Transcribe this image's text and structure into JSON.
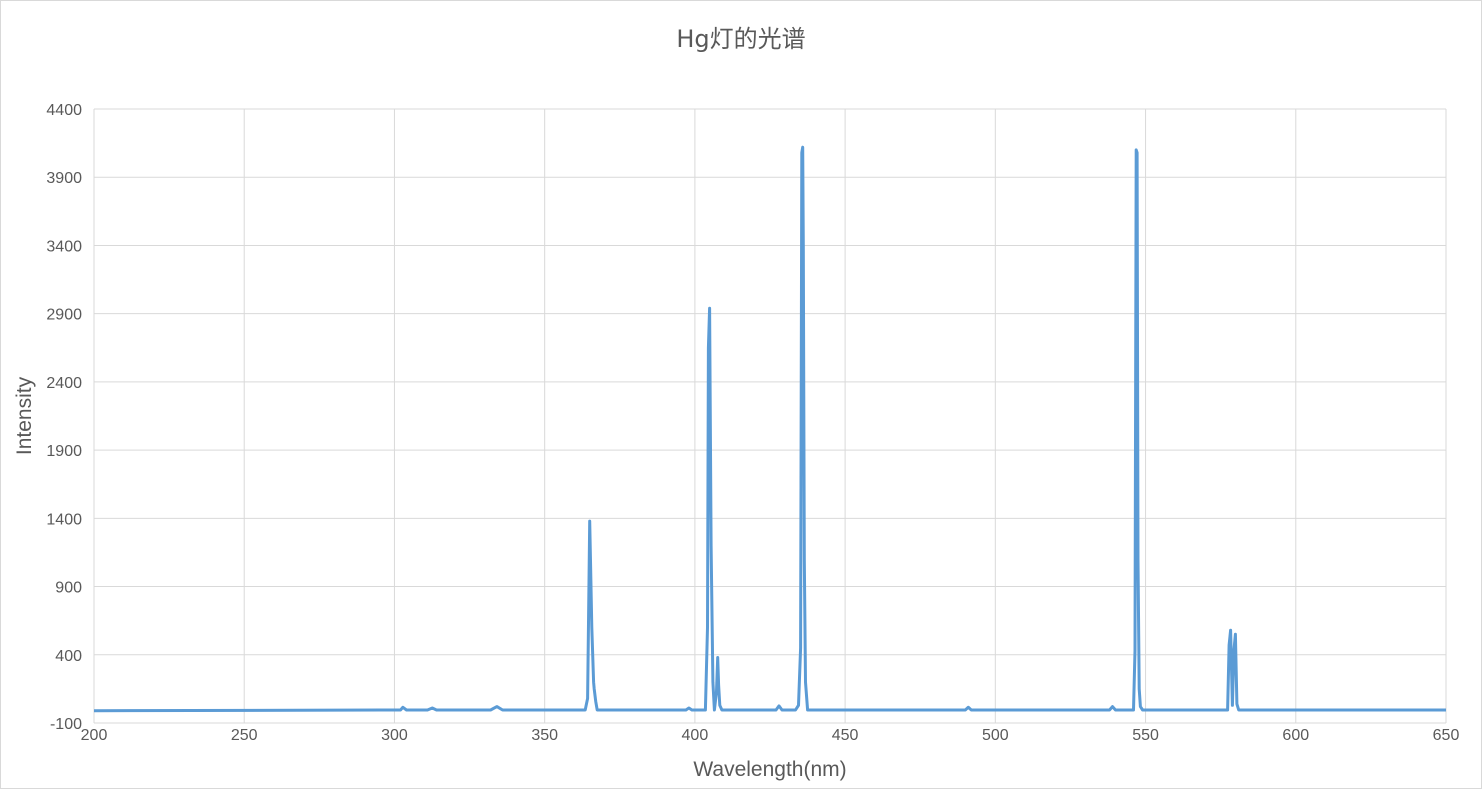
{
  "chart_data": {
    "type": "line",
    "title": "Hg灯的光谱",
    "xlabel": "Wavelength(nm)",
    "ylabel": "Intensity",
    "xlim": [
      200,
      650
    ],
    "ylim": [
      -100,
      4400
    ],
    "x_ticks": [
      "200",
      "250",
      "300",
      "350",
      "400",
      "450",
      "500",
      "550",
      "600",
      "650"
    ],
    "y_ticks": [
      "-100",
      "400",
      "900",
      "1400",
      "1900",
      "2400",
      "2900",
      "3400",
      "3900",
      "4400"
    ],
    "grid": true,
    "legend": "none",
    "series_color": "#5b9bd5",
    "series": [
      {
        "x": [
          200,
          300,
          302,
          302.8,
          304,
          311,
          312.6,
          314,
          332,
          334.1,
          336,
          363.5,
          364.3,
          364.8,
          365.0,
          365.3,
          365.7,
          366.3,
          366.5,
          367.0,
          367.5,
          397,
          398,
          399,
          403.5,
          404.2,
          404.5,
          404.9,
          405.4,
          406.0,
          406.5,
          407.2,
          407.6,
          407.9,
          408.3,
          409.0,
          427,
          428,
          429,
          433.5,
          434.5,
          435.2,
          435.6,
          435.9,
          436.1,
          436.4,
          436.8,
          437.5,
          490,
          491,
          492,
          538,
          539,
          540,
          546,
          546.5,
          546.9,
          547.2,
          547.5,
          547.9,
          548.3,
          549,
          577.3,
          577.8,
          578.3,
          578.9,
          579.4,
          579.9,
          580.4,
          581.0,
          650
        ],
        "y": [
          -10,
          -5,
          -5,
          15,
          -5,
          -5,
          10,
          -5,
          -5,
          20,
          -5,
          -5,
          80,
          1000,
          1380,
          1050,
          600,
          200,
          150,
          60,
          -5,
          -5,
          10,
          -5,
          -5,
          600,
          2650,
          2940,
          1200,
          200,
          -5,
          130,
          380,
          180,
          30,
          -5,
          -5,
          25,
          -5,
          -5,
          30,
          450,
          4080,
          4120,
          3400,
          1100,
          200,
          -5,
          -5,
          15,
          -5,
          -5,
          20,
          -5,
          -5,
          430,
          4100,
          4080,
          1100,
          150,
          20,
          -5,
          -5,
          470,
          580,
          30,
          430,
          550,
          40,
          -5,
          -5
        ]
      }
    ]
  }
}
